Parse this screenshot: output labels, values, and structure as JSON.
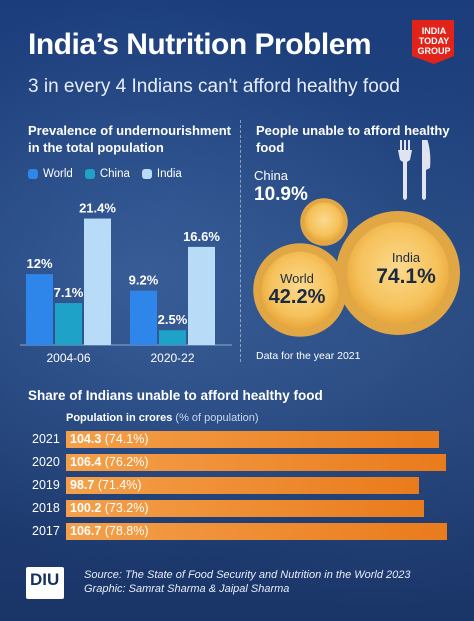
{
  "header": {
    "title": "India’s Nutrition Problem",
    "subtitle": "3 in every 4 Indians can't afford healthy food",
    "logo_lines": [
      "INDIA",
      "TODAY",
      "GROUP"
    ]
  },
  "chart_data": [
    {
      "type": "bar",
      "title": "Prevalence of undernourishment in the total population",
      "categories": [
        "2004-06",
        "2020-22"
      ],
      "series": [
        {
          "name": "World",
          "values": [
            12,
            9.2
          ],
          "labels": [
            "12%",
            "9.2%"
          ]
        },
        {
          "name": "China",
          "values": [
            7.1,
            2.5
          ],
          "labels": [
            "7.1%",
            "2.5%"
          ]
        },
        {
          "name": "India",
          "values": [
            21.4,
            16.6
          ],
          "labels": [
            "21.4%",
            "16.6%"
          ]
        }
      ],
      "colors": {
        "World": "#2f86ea",
        "China": "#1fa2c8",
        "India": "#b8dbf8"
      },
      "ylim": [
        0,
        22
      ],
      "legend": "top-left"
    },
    {
      "type": "bubble",
      "title": "People unable to afford healthy food",
      "categories": [
        "China",
        "World",
        "India"
      ],
      "values": [
        10.9,
        42.2,
        74.1
      ],
      "labels": [
        "10.9%",
        "42.2%",
        "74.1%"
      ],
      "note": "Data for the year 2021"
    },
    {
      "type": "bar",
      "orientation": "horizontal",
      "title": "Share of Indians unable to afford healthy food",
      "subtitle_bold": "Population in crores",
      "subtitle_rest": "(% of population)",
      "categories": [
        "2021",
        "2020",
        "2019",
        "2018",
        "2017"
      ],
      "values": [
        104.3,
        106.4,
        98.7,
        100.2,
        106.7
      ],
      "value_labels": [
        "104.3",
        "106.4",
        "98.7",
        "100.2",
        "106.7"
      ],
      "percent_labels": [
        "(74.1%)",
        "(76.2%)",
        "(71.4%)",
        "(73.2%)",
        "(78.8%)"
      ],
      "bar_color": "#f08c2e"
    }
  ],
  "footer": {
    "badge": "DIU",
    "source_line": "Source: The State of Food Security and Nutrition in the World 2023",
    "graphic_line": "Graphic: Samrat Sharma & Jaipal Sharma"
  }
}
